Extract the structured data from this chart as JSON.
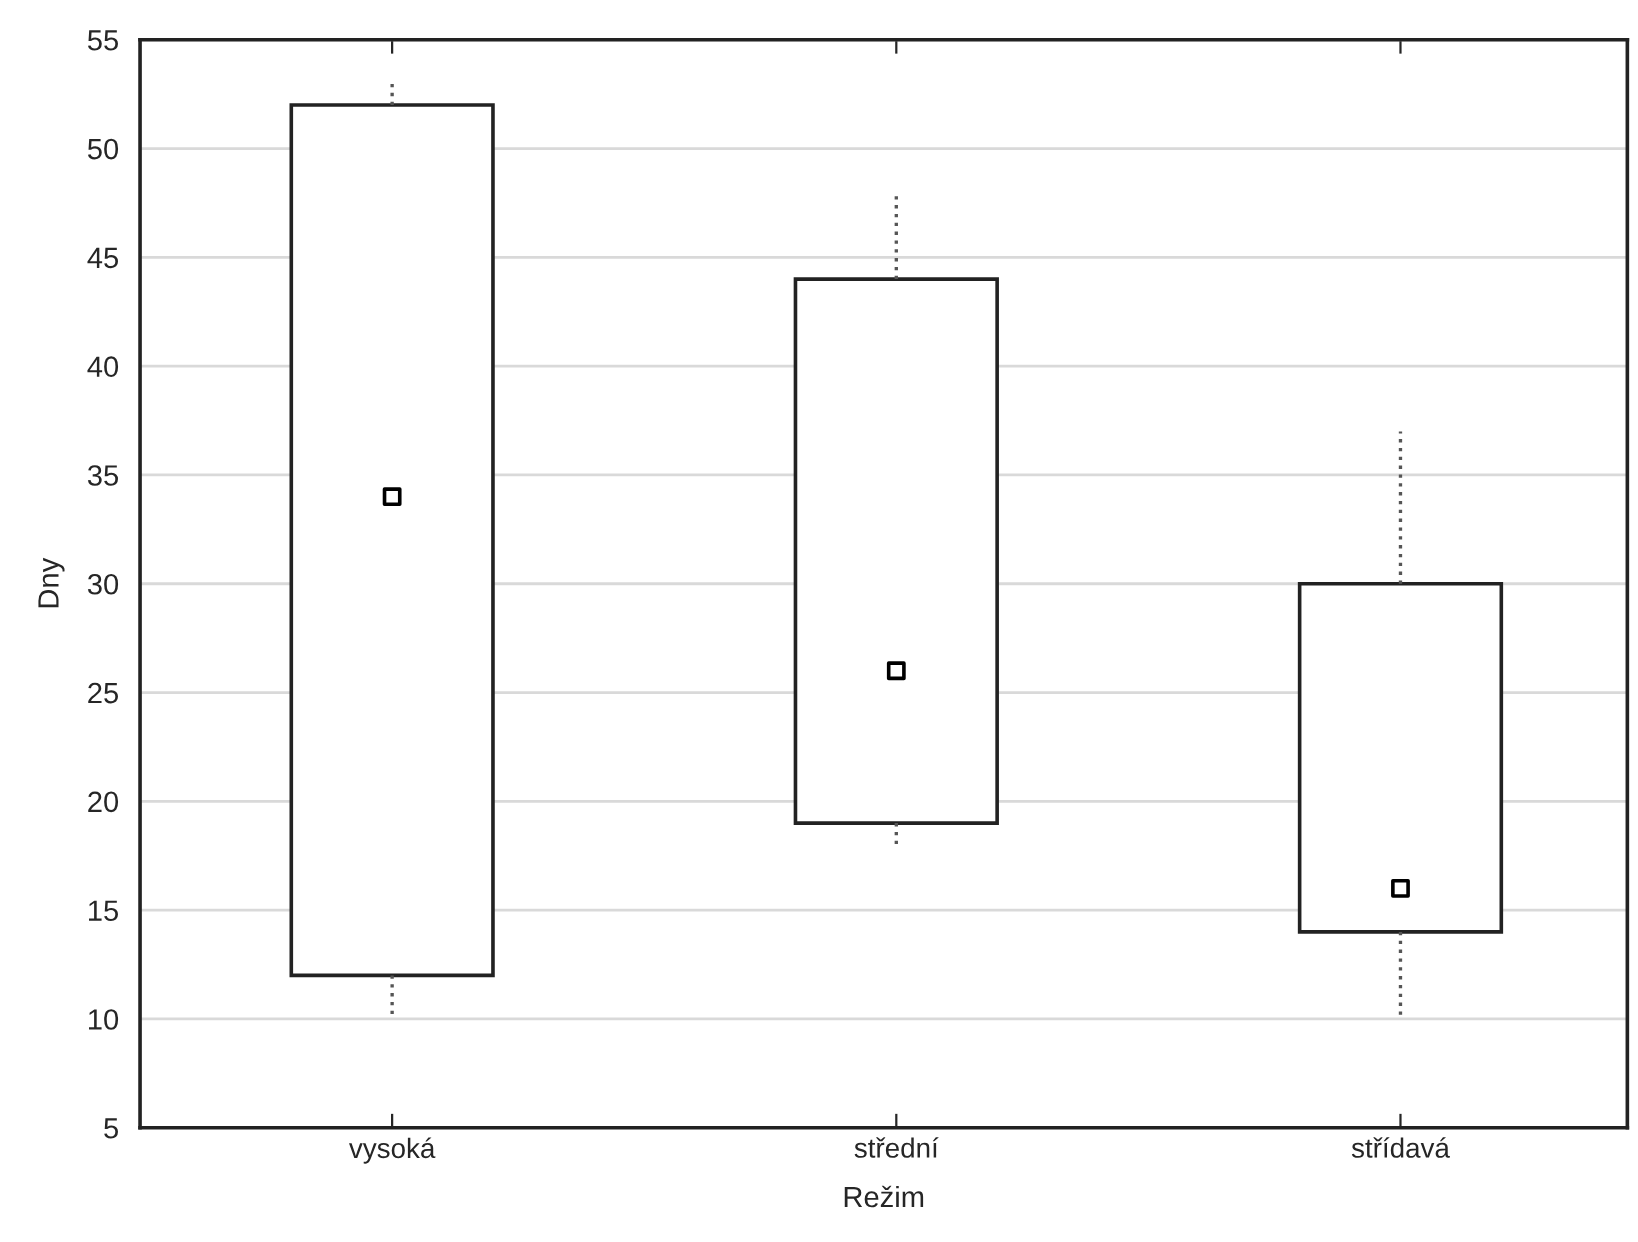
{
  "chart_data": {
    "type": "box",
    "xlabel": "Režim",
    "ylabel": "Dny",
    "categories": [
      "vysoká",
      "střední",
      "střídavá"
    ],
    "boxes": [
      {
        "low": 10,
        "q1": 12,
        "median": 34,
        "q3": 52,
        "high": 53
      },
      {
        "low": 18,
        "q1": 19,
        "median": 26,
        "q3": 44,
        "high": 48
      },
      {
        "low": 10,
        "q1": 14,
        "median": 16,
        "q3": 30,
        "high": 37
      }
    ],
    "ylim": [
      5,
      55
    ],
    "yticks": [
      5,
      10,
      15,
      20,
      25,
      30,
      35,
      40,
      45,
      50,
      55
    ],
    "grid": "y",
    "marker": "square"
  }
}
